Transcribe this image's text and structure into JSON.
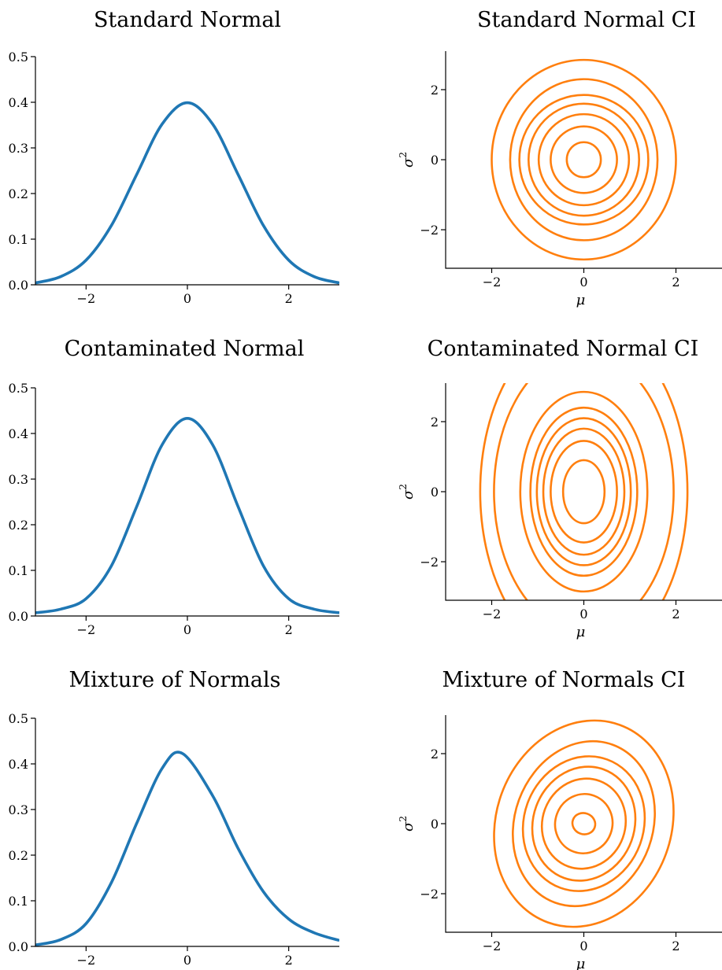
{
  "figure": {
    "colors": {
      "density": "#1f77b4",
      "contour": "#ff7f0e"
    }
  },
  "chart_data": [
    {
      "type": "line",
      "title": "Standard Normal",
      "xlabel": "",
      "ylabel": "",
      "xlim": [
        -3,
        3
      ],
      "ylim": [
        0,
        0.5
      ],
      "xticks": [
        -2,
        0,
        2
      ],
      "yticks": [
        0.0,
        0.1,
        0.2,
        0.3,
        0.4,
        0.5
      ],
      "xtick_labels": [
        "−2",
        "0",
        "2"
      ],
      "ytick_labels": [
        "0.0",
        "0.1",
        "0.2",
        "0.3",
        "0.4",
        "0.5"
      ],
      "series": [
        {
          "x": [
            -3,
            -2.5,
            -2,
            -1.5,
            -1,
            -0.5,
            0,
            0.5,
            1,
            1.5,
            2,
            2.5,
            3
          ],
          "y": [
            0.004,
            0.018,
            0.054,
            0.13,
            0.242,
            0.352,
            0.399,
            0.352,
            0.242,
            0.13,
            0.054,
            0.018,
            0.004
          ]
        }
      ]
    },
    {
      "type": "contour",
      "title": "Standard Normal CI",
      "xlabel": "μ",
      "ylabel": "σ",
      "ylabel_superscript": "2",
      "xlim": [
        -3,
        3
      ],
      "ylim": [
        -3.1,
        3.1
      ],
      "xticks": [
        -2,
        0,
        2
      ],
      "yticks": [
        -2,
        0,
        2
      ],
      "xtick_labels": [
        "−2",
        "0",
        "2"
      ],
      "ytick_labels": [
        "−2",
        "0",
        "2"
      ],
      "levels": [
        {
          "rx": 0.37,
          "ry": 0.5
        },
        {
          "rx": 0.72,
          "ry": 0.95
        },
        {
          "rx": 0.98,
          "ry": 1.3
        },
        {
          "rx": 1.2,
          "ry": 1.6
        },
        {
          "rx": 1.4,
          "ry": 1.85
        },
        {
          "rx": 1.6,
          "ry": 2.3
        },
        {
          "rx": 2.0,
          "ry": 2.85
        }
      ]
    },
    {
      "type": "line",
      "title": "Contaminated Normal",
      "xlabel": "",
      "ylabel": "",
      "xlim": [
        -3,
        3
      ],
      "ylim": [
        0,
        0.5
      ],
      "xticks": [
        -2,
        0,
        2
      ],
      "yticks": [
        0.0,
        0.1,
        0.2,
        0.3,
        0.4,
        0.5
      ],
      "xtick_labels": [
        "−2",
        "0",
        "2"
      ],
      "ytick_labels": [
        "0.0",
        "0.1",
        "0.2",
        "0.3",
        "0.4",
        "0.5"
      ],
      "series": [
        {
          "x": [
            -3,
            -2.5,
            -2,
            -1.5,
            -1,
            -0.5,
            0,
            0.5,
            1,
            1.5,
            2,
            2.5,
            3
          ],
          "y": [
            0.007,
            0.015,
            0.038,
            0.11,
            0.24,
            0.375,
            0.433,
            0.375,
            0.24,
            0.11,
            0.038,
            0.015,
            0.007
          ]
        }
      ]
    },
    {
      "type": "contour",
      "title": "Contaminated Normal CI",
      "xlabel": "μ",
      "ylabel": "σ",
      "ylabel_superscript": "2",
      "xlim": [
        -3,
        3
      ],
      "ylim": [
        -3.1,
        3.1
      ],
      "xticks": [
        -2,
        0,
        2
      ],
      "yticks": [
        -2,
        0,
        2
      ],
      "xtick_labels": [
        "−2",
        "0",
        "2"
      ],
      "ytick_labels": [
        "−2",
        "0",
        "2"
      ],
      "levels": [
        {
          "rx": 0.45,
          "ry": 0.9
        },
        {
          "rx": 0.72,
          "ry": 1.45
        },
        {
          "rx": 0.88,
          "ry": 1.8
        },
        {
          "rx": 1.02,
          "ry": 2.1
        },
        {
          "rx": 1.16,
          "ry": 2.4
        },
        {
          "rx": 1.38,
          "ry": 2.85
        },
        {
          "rx": 1.95,
          "ry": 4.0
        },
        {
          "rx": 2.25,
          "ry": 4.8
        }
      ]
    },
    {
      "type": "line",
      "title": "Mixture of Normals",
      "xlabel": "",
      "ylabel": "",
      "xlim": [
        -3,
        3
      ],
      "ylim": [
        0,
        0.5
      ],
      "xticks": [
        -2,
        0,
        2
      ],
      "yticks": [
        0.0,
        0.1,
        0.2,
        0.3,
        0.4,
        0.5
      ],
      "xtick_labels": [
        "−2",
        "0",
        "2"
      ],
      "ytick_labels": [
        "0.0",
        "0.1",
        "0.2",
        "0.3",
        "0.4",
        "0.5"
      ],
      "series": [
        {
          "x": [
            -3,
            -2.5,
            -2,
            -1.5,
            -1,
            -0.5,
            -0.1,
            0.5,
            1,
            1.5,
            2,
            2.5,
            3
          ],
          "y": [
            0.003,
            0.015,
            0.05,
            0.14,
            0.27,
            0.39,
            0.423,
            0.33,
            0.215,
            0.12,
            0.06,
            0.03,
            0.013
          ]
        }
      ]
    },
    {
      "type": "contour",
      "title": "Mixture of Normals CI",
      "xlabel": "μ",
      "ylabel": "σ",
      "ylabel_superscript": "2",
      "xlim": [
        -3,
        3
      ],
      "ylim": [
        -3.1,
        3.1
      ],
      "xticks": [
        -2,
        0,
        2
      ],
      "yticks": [
        -2,
        0,
        2
      ],
      "xtick_labels": [
        "−2",
        "0",
        "2"
      ],
      "ytick_labels": [
        "−2",
        "0",
        "2"
      ],
      "center": [
        0.0,
        0.0
      ],
      "tilt_deg": 20,
      "levels": [
        {
          "rx": 0.25,
          "ry": 0.3
        },
        {
          "rx": 0.62,
          "ry": 0.85
        },
        {
          "rx": 0.9,
          "ry": 1.3
        },
        {
          "rx": 1.1,
          "ry": 1.65
        },
        {
          "rx": 1.3,
          "ry": 1.95
        },
        {
          "rx": 1.5,
          "ry": 2.4
        },
        {
          "rx": 1.9,
          "ry": 3.0
        }
      ]
    }
  ]
}
